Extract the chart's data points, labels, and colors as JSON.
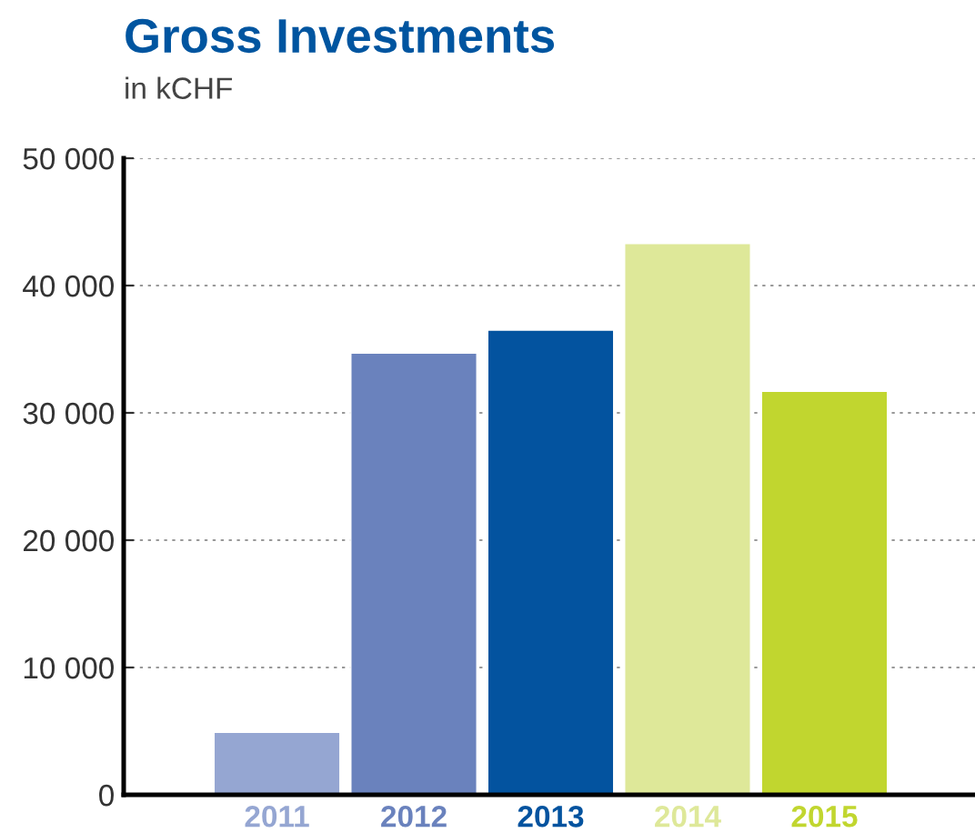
{
  "chart_data": {
    "type": "bar",
    "title": "Gross Investments",
    "subtitle": "in kCHF",
    "categories": [
      "2011",
      "2012",
      "2013",
      "2014",
      "2015"
    ],
    "values": [
      4900,
      34700,
      36500,
      43300,
      31700
    ],
    "colors": [
      "#95a6d2",
      "#6a82bd",
      "#03539f",
      "#dee899",
      "#c1d62f"
    ],
    "ylim": [
      0,
      50000
    ],
    "yticks": [
      {
        "value": 0,
        "label": "0"
      },
      {
        "value": 10000,
        "label": "10 000"
      },
      {
        "value": 20000,
        "label": "20 000"
      },
      {
        "value": 30000,
        "label": "30 000"
      },
      {
        "value": 40000,
        "label": "40 000"
      },
      {
        "value": 50000,
        "label": "50 000"
      }
    ],
    "grid": "y",
    "legend": false
  }
}
